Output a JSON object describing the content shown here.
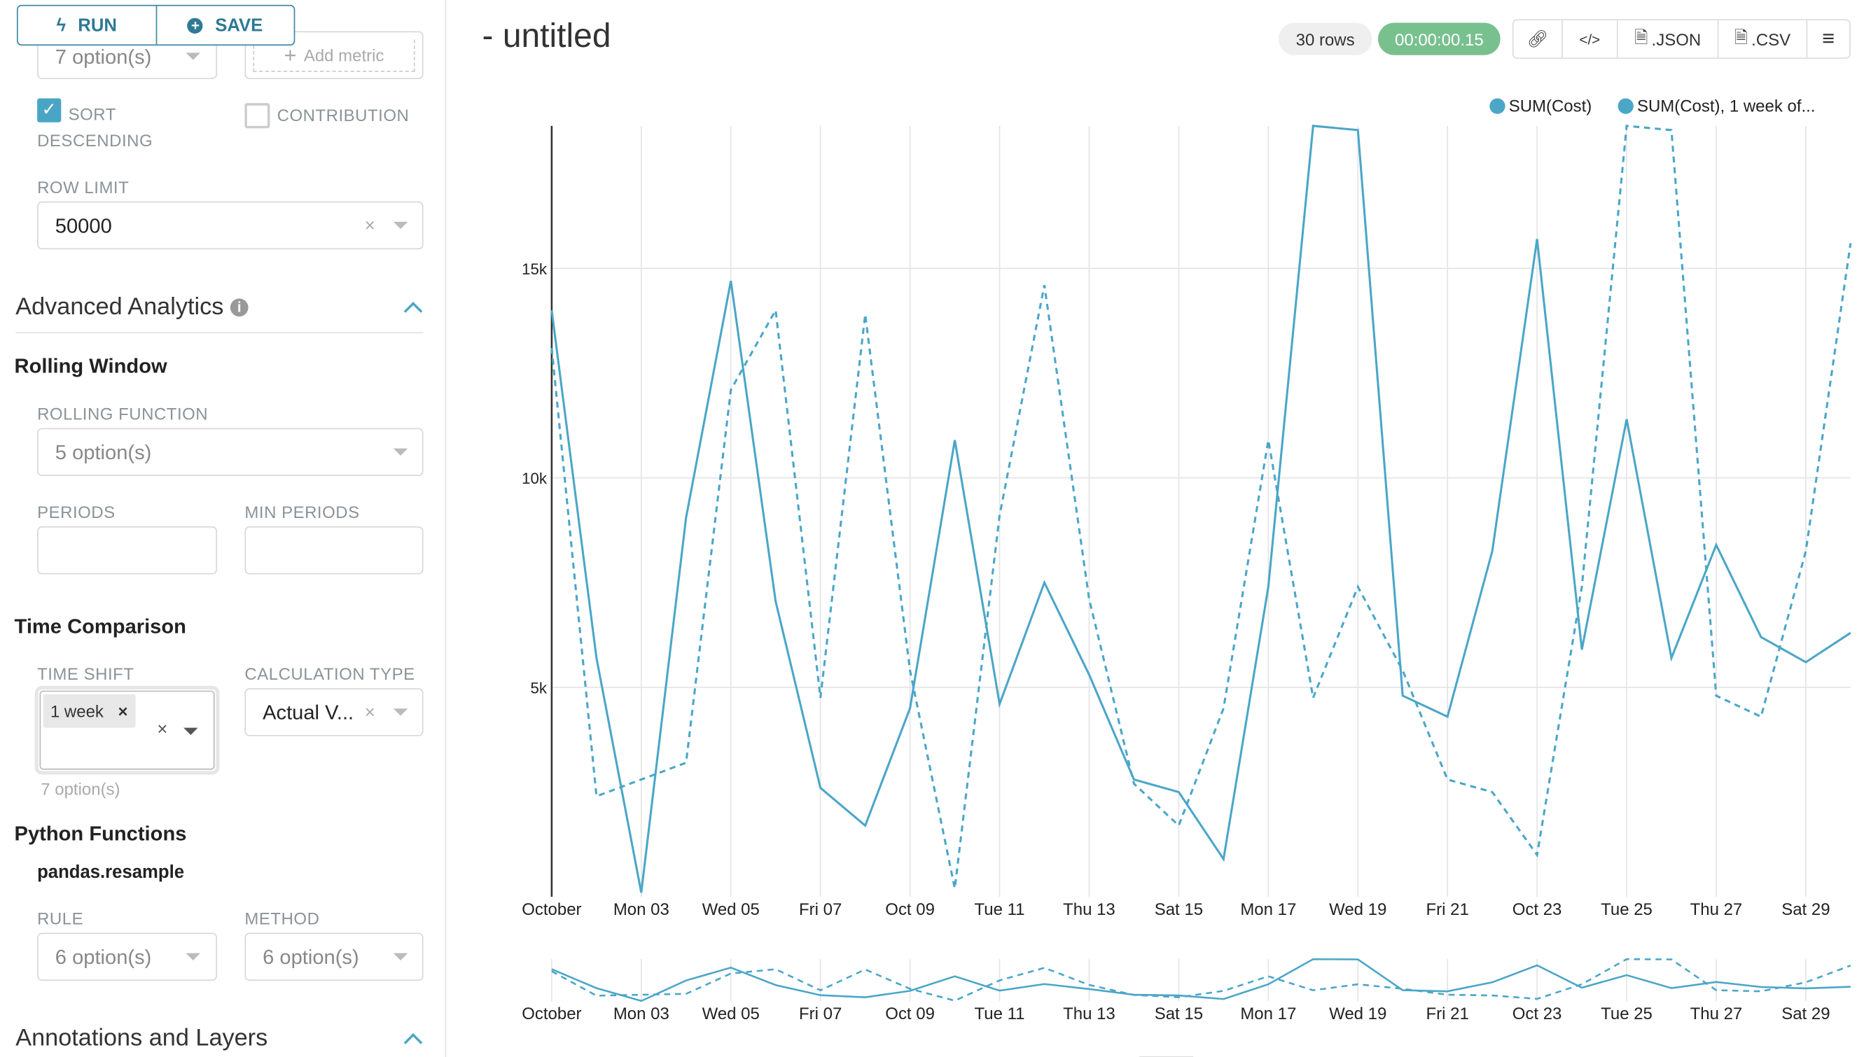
{
  "toolbar": {
    "run_label": "RUN",
    "save_label": "SAVE"
  },
  "left_panel": {
    "top_select_value": "7 option(s)",
    "add_metric_label": "Add metric",
    "sort_descending": {
      "label": "SORT DESCENDING",
      "checked": true
    },
    "contribution": {
      "label": "CONTRIBUTION",
      "checked": false
    },
    "row_limit": {
      "label": "ROW LIMIT",
      "value": "50000"
    },
    "advanced_analytics": {
      "title": "Advanced Analytics",
      "rolling_window": {
        "title": "Rolling Window",
        "rolling_function_label": "ROLLING FUNCTION",
        "rolling_function_value": "5 option(s)",
        "periods_label": "PERIODS",
        "periods_value": "",
        "min_periods_label": "MIN PERIODS",
        "min_periods_value": ""
      },
      "time_comparison": {
        "title": "Time Comparison",
        "time_shift_label": "TIME SHIFT",
        "time_shift_tag": "1 week",
        "time_shift_hint": "7 option(s)",
        "calculation_type_label": "CALCULATION TYPE",
        "calculation_type_value": "Actual V..."
      },
      "python_functions": {
        "title": "Python Functions",
        "subtitle": "pandas.resample",
        "rule_label": "RULE",
        "rule_value": "6 option(s)",
        "method_label": "METHOD",
        "method_value": "6 option(s)"
      }
    },
    "annotations_title": "Annotations and Layers"
  },
  "header": {
    "title": "- untitled",
    "rows": "30 rows",
    "timer": "00:00:00.15",
    "json_label": ".JSON",
    "csv_label": ".CSV"
  },
  "colors": {
    "accent": "#4aa5c5",
    "timer_bg": "#79c08f",
    "series": "#4ba6c8"
  },
  "chart_data": {
    "type": "line",
    "x": [
      "2022-10-01",
      "2022-10-02",
      "2022-10-03",
      "2022-10-04",
      "2022-10-05",
      "2022-10-06",
      "2022-10-07",
      "2022-10-08",
      "2022-10-09",
      "2022-10-10",
      "2022-10-11",
      "2022-10-12",
      "2022-10-13",
      "2022-10-14",
      "2022-10-15",
      "2022-10-16",
      "2022-10-17",
      "2022-10-18",
      "2022-10-19",
      "2022-10-20",
      "2022-10-21",
      "2022-10-22",
      "2022-10-23",
      "2022-10-24",
      "2022-10-25",
      "2022-10-26",
      "2022-10-27",
      "2022-10-28",
      "2022-10-29",
      "2022-10-30"
    ],
    "tick_labels": [
      "October",
      "Mon 03",
      "Wed 05",
      "Fri 07",
      "Oct 09",
      "Tue 11",
      "Thu 13",
      "Sat 15",
      "Mon 17",
      "Wed 19",
      "Fri 21",
      "Oct 23",
      "Tue 25",
      "Thu 27",
      "Sat 29"
    ],
    "y_ticks": [
      "5k",
      "10k",
      "15k"
    ],
    "y_tick_values": [
      5000,
      10000,
      15000
    ],
    "ylim": [
      0,
      18400
    ],
    "grid": true,
    "legend_position": "top-right",
    "series": [
      {
        "name": "SUM(Cost)",
        "style": "solid",
        "values": [
          14000,
          5700,
          100,
          9050,
          14700,
          7050,
          2600,
          1700,
          4500,
          10900,
          4600,
          7500,
          5300,
          2800,
          2500,
          900,
          7400,
          18400,
          18300,
          4800,
          4300,
          8250,
          15700,
          5900,
          11400,
          5700,
          8400,
          6200,
          5600,
          6300
        ]
      },
      {
        "name": "SUM(Cost), 1 week of...",
        "style": "dashed",
        "values": [
          13100,
          2400,
          2800,
          3200,
          12100,
          14000,
          4750,
          13900,
          5400,
          200,
          9100,
          14600,
          7100,
          2700,
          1700,
          4500,
          10900,
          4750,
          7400,
          5400,
          2800,
          2500,
          1000,
          7400,
          18400,
          18300,
          4800,
          4300,
          8250,
          15600
        ]
      }
    ]
  }
}
